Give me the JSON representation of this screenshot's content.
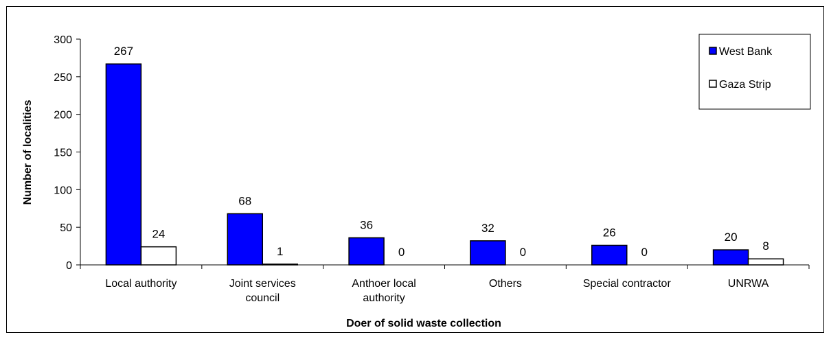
{
  "chart_data": {
    "type": "bar",
    "categories": [
      [
        "Local authority"
      ],
      [
        "Joint services",
        "council"
      ],
      [
        "Anthoer local",
        "authority"
      ],
      [
        "Others"
      ],
      [
        "Special contractor"
      ],
      [
        "UNRWA"
      ]
    ],
    "series": [
      {
        "name": "West Bank",
        "values": [
          267,
          68,
          36,
          32,
          26,
          20
        ],
        "color": "#0000ff"
      },
      {
        "name": "Gaza Strip",
        "values": [
          24,
          1,
          0,
          0,
          0,
          8
        ],
        "color": "#ffffff"
      }
    ],
    "xlabel": "Doer of solid waste collection",
    "ylabel": "Number of localities",
    "ylim": [
      0,
      300
    ],
    "yticks": [
      0,
      50,
      100,
      150,
      200,
      250,
      300
    ],
    "grid": false,
    "legend_position": "top-right"
  }
}
